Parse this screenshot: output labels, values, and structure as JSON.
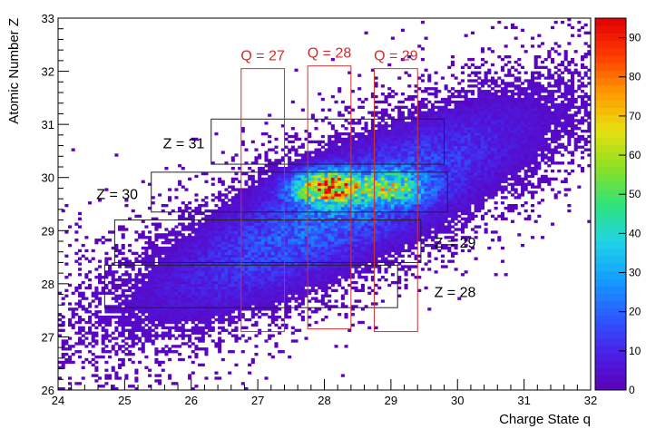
{
  "chart_data": {
    "type": "heatmap",
    "xlabel": "Charge State q",
    "ylabel": "Atomic Number Z",
    "xlim": [
      24,
      32
    ],
    "ylim": [
      26,
      33
    ],
    "x_ticks": [
      "24",
      "25",
      "26",
      "27",
      "28",
      "29",
      "30",
      "31",
      "32"
    ],
    "y_ticks": [
      "26",
      "27",
      "28",
      "29",
      "30",
      "31",
      "32",
      "33"
    ],
    "colorbar": {
      "range": [
        0,
        95
      ],
      "ticks": [
        "0",
        "10",
        "20",
        "30",
        "40",
        "50",
        "60",
        "70",
        "80",
        "90"
      ]
    },
    "density_clusters": [
      {
        "x": 28.05,
        "y": 29.82,
        "count": 92
      },
      {
        "x": 29.0,
        "y": 29.82,
        "count": 55
      }
    ],
    "z_gates": [
      {
        "label": "Z = 31",
        "x": [
          26.3,
          29.8
        ],
        "y": [
          30.25,
          31.1
        ]
      },
      {
        "label": "Z = 30",
        "x": [
          25.4,
          29.85
        ],
        "y": [
          29.35,
          30.1
        ]
      },
      {
        "label": "Z = 29",
        "x": [
          24.85,
          29.45
        ],
        "y": [
          28.4,
          29.2
        ]
      },
      {
        "label": "Z = 28",
        "x": [
          24.7,
          29.1
        ],
        "y": [
          27.55,
          28.35
        ]
      }
    ],
    "q_gates": [
      {
        "label": "Q = 27",
        "x": [
          26.75,
          27.4
        ],
        "y": [
          27.1,
          32.05
        ]
      },
      {
        "label": "Q = 28",
        "x": [
          27.75,
          28.4
        ],
        "y": [
          27.15,
          32.1
        ]
      },
      {
        "label": "Q = 29",
        "x": [
          28.75,
          29.4
        ],
        "y": [
          27.1,
          32.05
        ]
      }
    ]
  },
  "colors": {
    "gate_z": "#222222",
    "gate_q": "#cc3333",
    "palette": [
      "#5d00b8",
      "#4a20e8",
      "#2a5cff",
      "#139fff",
      "#1fd3e6",
      "#2fe37a",
      "#8ee023",
      "#e8e010",
      "#ff9a00",
      "#ff3a00",
      "#e00000"
    ]
  }
}
